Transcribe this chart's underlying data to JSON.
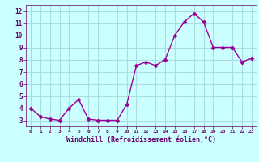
{
  "x": [
    0,
    1,
    2,
    3,
    4,
    5,
    6,
    7,
    8,
    9,
    10,
    11,
    12,
    13,
    14,
    15,
    16,
    17,
    18,
    19,
    20,
    21,
    22,
    23
  ],
  "y": [
    4.0,
    3.3,
    3.1,
    3.0,
    4.0,
    4.7,
    3.1,
    3.0,
    3.0,
    3.0,
    4.3,
    7.5,
    7.8,
    7.5,
    8.0,
    10.0,
    11.1,
    11.8,
    11.1,
    9.0,
    9.0,
    9.0,
    7.8,
    8.1
  ],
  "line_color": "#990099",
  "marker": "D",
  "marker_size": 2.5,
  "background_color": "#ccffff",
  "grid_color": "#aadddd",
  "xlabel": "Windchill (Refroidissement éolien,°C)",
  "xlabel_color": "#660066",
  "tick_color": "#660066",
  "ylim": [
    2.5,
    12.5
  ],
  "xlim": [
    -0.5,
    23.5
  ],
  "yticks": [
    3,
    4,
    5,
    6,
    7,
    8,
    9,
    10,
    11,
    12
  ],
  "xtick_labels": [
    "0",
    "1",
    "2",
    "3",
    "4",
    "5",
    "6",
    "7",
    "8",
    "9",
    "10",
    "11",
    "12",
    "13",
    "14",
    "15",
    "16",
    "17",
    "18",
    "19",
    "20",
    "21",
    "22",
    "23"
  ],
  "line_width": 1.0,
  "marker_color": "#990099",
  "title": ""
}
